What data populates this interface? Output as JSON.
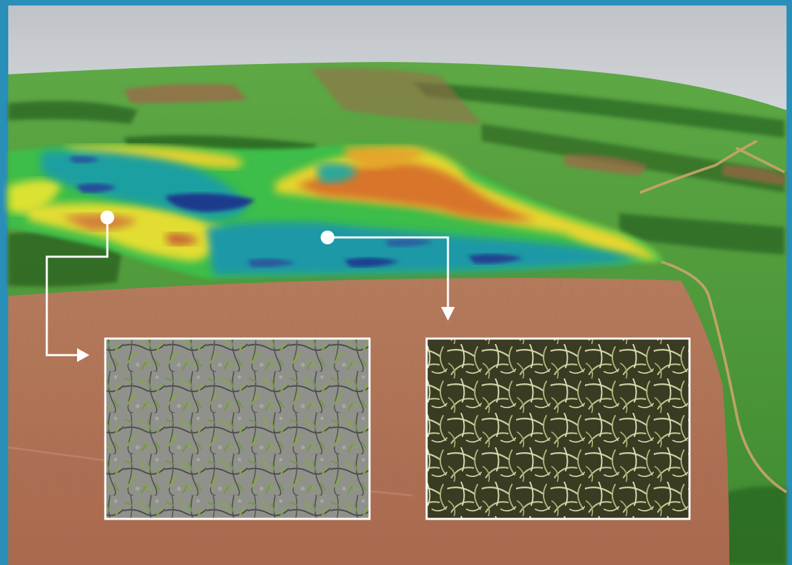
{
  "image": {
    "subject": "aerial-field-crop-health-map",
    "frame_color": "#2a8fb8",
    "sky_color": "#c9cdd1",
    "field_color": "#b07358",
    "vegetation_color": "#4f9a3c",
    "heatmap_scale": [
      "#1f3f8f",
      "#2e86b8",
      "#1aa389",
      "#3cbd47",
      "#d8de2e",
      "#f0b428",
      "#c8642c"
    ],
    "callout_color": "#ffffff",
    "insets": [
      {
        "name": "stressed-crop-closeup",
        "soil_color": "#8e8f86",
        "leaf_color": "#7fa34a"
      },
      {
        "name": "healthy-crop-closeup",
        "base_color": "#3c3a22",
        "leaf_color": "#c9d3a4"
      }
    ]
  }
}
